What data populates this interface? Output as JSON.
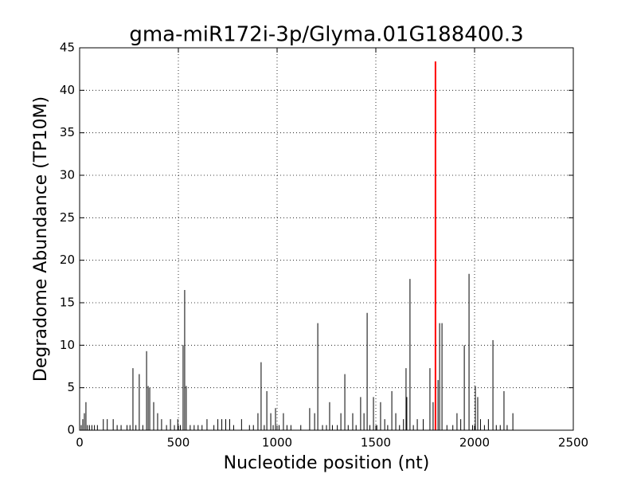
{
  "chart_data": {
    "type": "stem",
    "title": "gma-miR172i-3p/Glyma.01G188400.3",
    "x_label": "Nucleotide position (nt)",
    "y_label": "Degradome Abundance (TP10M)",
    "xlim": [
      0,
      2500
    ],
    "xticks": [
      0,
      500,
      1000,
      1500,
      2000,
      2500
    ],
    "ylim": [
      0,
      45
    ],
    "yticks": [
      0,
      5,
      10,
      15,
      20,
      25,
      30,
      35,
      40,
      45
    ],
    "grid": true,
    "series": [
      {
        "color": "#000000",
        "x": [
          8,
          16,
          24,
          32,
          40,
          50,
          62,
          75,
          90,
          120,
          140,
          170,
          190,
          210,
          240,
          255,
          270,
          285,
          302,
          320,
          339,
          347,
          355,
          375,
          395,
          415,
          440,
          460,
          480,
          497,
          510,
          524,
          532,
          540,
          560,
          580,
          600,
          620,
          645,
          680,
          700,
          720,
          740,
          760,
          780,
          820,
          860,
          880,
          903,
          919,
          935,
          948,
          968,
          980,
          992,
          1010,
          1032,
          1050,
          1070,
          1120,
          1165,
          1190,
          1206,
          1230,
          1250,
          1266,
          1280,
          1305,
          1323,
          1343,
          1360,
          1383,
          1400,
          1423,
          1440,
          1456,
          1470,
          1488,
          1505,
          1524,
          1545,
          1560,
          1581,
          1601,
          1620,
          1640,
          1653,
          1657,
          1673,
          1690,
          1710,
          1740,
          1774,
          1790,
          1815,
          1823,
          1835,
          1860,
          1890,
          1911,
          1930,
          1948,
          1972,
          1990,
          2004,
          2016,
          2030,
          2050,
          2070,
          2093,
          2110,
          2130,
          2149,
          2165,
          2194
        ],
        "values": [
          0.6,
          1.3,
          2,
          3.3,
          0.6,
          0.6,
          0.6,
          0.6,
          0.6,
          1.3,
          1.3,
          1.3,
          0.6,
          0.6,
          0.6,
          0.6,
          7.3,
          0.6,
          6.6,
          0.6,
          9.3,
          5.2,
          5,
          3.3,
          2,
          1.3,
          0.6,
          1.3,
          0.6,
          1.3,
          0.6,
          10,
          16.5,
          5.2,
          0.6,
          0.6,
          0.6,
          0.6,
          1.3,
          0.6,
          1.3,
          1.3,
          1.3,
          1.3,
          0.6,
          1.3,
          0.6,
          0.6,
          2,
          8,
          0.6,
          4.6,
          2,
          0.6,
          2.6,
          0.6,
          2,
          0.6,
          0.6,
          0.6,
          2.6,
          2,
          12.6,
          0.6,
          0.6,
          3.3,
          0.6,
          0.6,
          2,
          6.6,
          0.6,
          2,
          0.6,
          3.9,
          2,
          13.8,
          0.6,
          3.9,
          0.6,
          3.3,
          1.3,
          0.6,
          4.6,
          2,
          0.6,
          1.3,
          7.3,
          3.9,
          17.8,
          0.6,
          1.3,
          1.3,
          7.3,
          3.3,
          5.9,
          12.6,
          12.6,
          0.6,
          0.6,
          2,
          1.3,
          10,
          18.4,
          0.6,
          5.2,
          3.9,
          1.3,
          0.6,
          1.3,
          10.6,
          0.6,
          0.6,
          4.6,
          0.6,
          2
        ]
      },
      {
        "color": "#ff0000",
        "x": [
          1802
        ],
        "values": [
          43.4
        ]
      }
    ]
  }
}
